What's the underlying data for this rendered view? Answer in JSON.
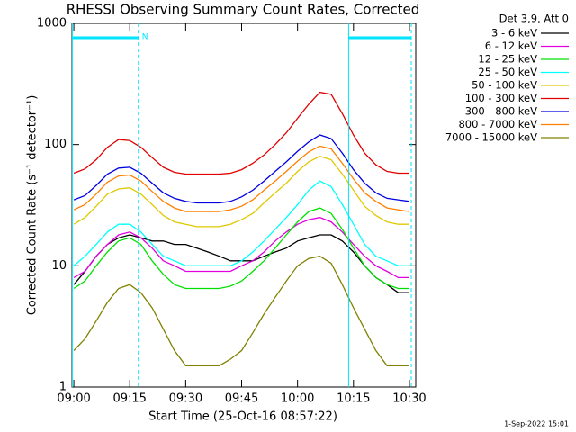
{
  "chart_data": {
    "type": "line",
    "title": "RHESSI Observing Summary Count Rates, Corrected",
    "x_label": "Start Time (25-Oct-16 08:57:22)",
    "y_label": "Corrected Count Rate (s⁻¹ detector⁻¹)",
    "legend_title": "Det 3,9, Att 0",
    "footer": "1-Sep-2022 15:01",
    "log_y": true,
    "ylim": [
      1,
      1000
    ],
    "yticks": [
      1,
      10,
      100,
      1000
    ],
    "xlim": [
      539.5,
      631.7
    ],
    "xticks": [
      {
        "value": 540,
        "label": "09:00"
      },
      {
        "value": 555,
        "label": "09:15"
      },
      {
        "value": 570,
        "label": "09:30"
      },
      {
        "value": 585,
        "label": "09:45"
      },
      {
        "value": 600,
        "label": "10:00"
      },
      {
        "value": 615,
        "label": "10:15"
      },
      {
        "value": 630,
        "label": "10:30"
      }
    ],
    "flags": {
      "label": "N",
      "color": "#00e5ff",
      "intervals": [
        [
          539.6,
          557.3
        ],
        [
          613.7,
          630.5
        ]
      ]
    },
    "x": [
      540,
      543,
      546,
      549,
      552,
      555,
      558,
      561,
      564,
      567,
      570,
      573,
      576,
      579,
      582,
      585,
      588,
      591,
      594,
      597,
      600,
      603,
      606,
      609,
      612,
      615,
      618,
      621,
      624,
      627,
      630
    ],
    "series": [
      {
        "name": "3 - 6 keV",
        "color": "#000000",
        "values": [
          7,
          9,
          12,
          15,
          17,
          18,
          17,
          16,
          16,
          15,
          15,
          14,
          13,
          12,
          11,
          11,
          11,
          12,
          13,
          14,
          16,
          17,
          18,
          18,
          16,
          13,
          10,
          8,
          7,
          6,
          6
        ]
      },
      {
        "name": "6 - 12 keV",
        "color": "#e000e0",
        "values": [
          8,
          9,
          12,
          15,
          18,
          19,
          17,
          14,
          11,
          10,
          9,
          9,
          9,
          9,
          9,
          10,
          11,
          13,
          16,
          19,
          22,
          24,
          25,
          23,
          19,
          15,
          12,
          10,
          9,
          8,
          8
        ]
      },
      {
        "name": "12 - 25 keV",
        "color": "#00e000",
        "values": [
          6.5,
          7.5,
          10,
          13,
          16,
          17,
          15,
          11,
          8.5,
          7,
          6.5,
          6.5,
          6.5,
          6.5,
          6.8,
          7.5,
          9,
          11,
          14,
          18,
          23,
          28,
          30,
          27,
          20,
          14,
          10,
          8,
          7,
          6.5,
          6.5
        ]
      },
      {
        "name": "25 - 50 keV",
        "color": "#00ffff",
        "values": [
          10,
          12,
          15,
          19,
          22,
          22,
          19,
          15,
          12,
          11,
          10,
          10,
          10,
          10,
          10,
          11,
          13,
          16,
          20,
          25,
          32,
          42,
          50,
          45,
          32,
          22,
          15,
          12,
          11,
          10,
          10
        ]
      },
      {
        "name": "50 - 100 keV",
        "color": "#e0c800",
        "values": [
          22,
          25,
          31,
          39,
          43,
          44,
          39,
          32,
          26,
          23,
          22,
          21,
          21,
          21,
          22,
          24,
          27,
          33,
          40,
          48,
          60,
          72,
          80,
          75,
          57,
          42,
          31,
          26,
          23,
          22,
          22
        ]
      },
      {
        "name": "100 - 300 keV",
        "color": "#e00000",
        "values": [
          58,
          63,
          75,
          95,
          110,
          108,
          95,
          78,
          65,
          59,
          57,
          57,
          57,
          57,
          58,
          62,
          70,
          82,
          100,
          125,
          165,
          215,
          270,
          260,
          180,
          120,
          85,
          68,
          60,
          58,
          58
        ]
      },
      {
        "name": "300 - 800 keV",
        "color": "#0000e0",
        "values": [
          35,
          38,
          46,
          57,
          64,
          65,
          58,
          48,
          40,
          36,
          34,
          33,
          33,
          33,
          34,
          37,
          42,
          50,
          60,
          72,
          88,
          105,
          120,
          112,
          85,
          62,
          48,
          40,
          36,
          35,
          34
        ]
      },
      {
        "name": "800 - 7000 keV",
        "color": "#ff8000",
        "values": [
          29,
          32,
          39,
          49,
          55,
          56,
          50,
          41,
          34,
          30,
          28,
          28,
          28,
          28,
          29,
          31,
          35,
          42,
          50,
          60,
          73,
          87,
          97,
          92,
          70,
          52,
          40,
          34,
          30,
          29,
          28
        ]
      },
      {
        "name": "7000 - 15000 keV",
        "color": "#808000",
        "values": [
          2,
          2.5,
          3.5,
          5,
          6.5,
          7,
          6,
          4.5,
          3,
          2,
          1.5,
          1.5,
          1.5,
          1.5,
          1.7,
          2,
          2.8,
          4,
          5.5,
          7.5,
          10,
          11.5,
          12,
          10.5,
          7,
          4.5,
          3,
          2,
          1.5,
          1.5,
          1.5
        ]
      }
    ]
  }
}
